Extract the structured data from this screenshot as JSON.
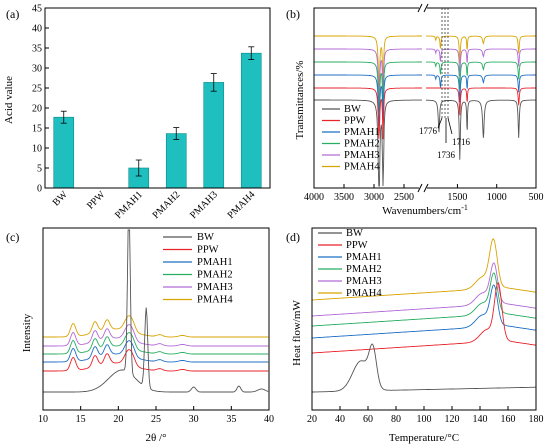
{
  "colors": {
    "BW": "#555555",
    "PPW": "#e8232a",
    "PMAH1": "#1f6fc4",
    "PMAH2": "#27ae60",
    "PMAH3": "#b36ad6",
    "PMAH4": "#d9a400",
    "bar": "#1fbfbf"
  },
  "legend": [
    "BW",
    "PPW",
    "PMAH1",
    "PMAH2",
    "PMAH3",
    "PMAH4"
  ],
  "chart_data": [
    {
      "panel": "(a)",
      "type": "bar",
      "categories": [
        "BW",
        "PPW",
        "PMAH1",
        "PMAH2",
        "PMAH3",
        "PMAH4"
      ],
      "values": [
        17.7,
        0,
        5.0,
        13.6,
        26.4,
        33.7
      ],
      "errors": [
        1.5,
        0,
        2.0,
        1.5,
        2.2,
        1.6
      ],
      "ylabel": "Acid value",
      "ylim": [
        0,
        45
      ],
      "yticks": [
        0,
        5,
        10,
        15,
        20,
        25,
        30,
        35,
        40,
        45
      ]
    },
    {
      "panel": "(b)",
      "type": "line",
      "xlabel": "Wavenumbers/cm",
      "xlabel_sup": "-1",
      "ylabel": "Transmittances/%",
      "xlim": [
        4000,
        500
      ],
      "xticks": [
        4000,
        3500,
        3000,
        2500,
        1500,
        1000,
        500
      ],
      "axis_break": [
        2200,
        1900
      ],
      "annotations": [
        "1776",
        "1716",
        "1736"
      ],
      "series": [
        "BW",
        "PPW",
        "PMAH1",
        "PMAH2",
        "PMAH3",
        "PMAH4"
      ]
    },
    {
      "panel": "(c)",
      "type": "line",
      "xlabel": "2θ /°",
      "ylabel": "Intensity",
      "xlim": [
        10,
        40
      ],
      "xticks": [
        10,
        15,
        20,
        25,
        30,
        35,
        40
      ],
      "series": [
        "BW",
        "PPW",
        "PMAH1",
        "PMAH2",
        "PMAH3",
        "PMAH4"
      ]
    },
    {
      "panel": "(d)",
      "type": "line",
      "xlabel": "Temperature/°C",
      "ylabel": "Heat flow/mW",
      "xlim": [
        20,
        180
      ],
      "xticks": [
        20,
        40,
        60,
        80,
        100,
        120,
        140,
        160,
        180
      ],
      "series": [
        "BW",
        "PPW",
        "PMAH1",
        "PMAH2",
        "PMAH3",
        "PMAH4"
      ]
    }
  ]
}
